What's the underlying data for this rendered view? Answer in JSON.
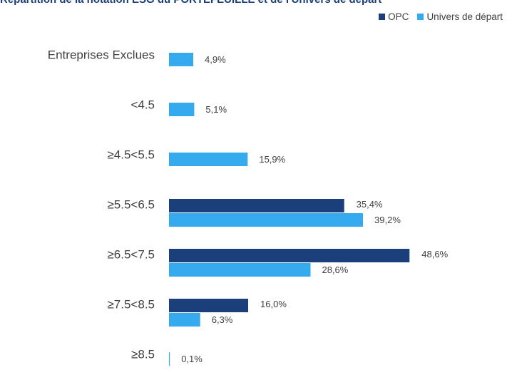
{
  "chart_data": {
    "type": "bar",
    "orientation": "horizontal",
    "title": "Répartition de la notation ESG du PORTEFEUILLE et de l'Univers de départ",
    "categories": [
      "Entreprises Exclues",
      "<4.5",
      "≥4.5<5.5",
      "≥5.5<6.5",
      "≥6.5<7.5",
      "≥7.5<8.5",
      "≥8.5"
    ],
    "series": [
      {
        "name": "OPC",
        "color": "#1b3f7a",
        "values": [
          null,
          null,
          null,
          35.4,
          48.6,
          16.0,
          null
        ],
        "labels": [
          "",
          "",
          "",
          "35,4%",
          "48,6%",
          "16,0%",
          ""
        ]
      },
      {
        "name": "Univers de départ",
        "color": "#36aaee",
        "values": [
          4.9,
          5.1,
          15.9,
          39.2,
          28.6,
          6.3,
          0.1
        ],
        "labels": [
          "4,9%",
          "5,1%",
          "15,9%",
          "39,2%",
          "28,6%",
          "6,3%",
          "0,1%"
        ]
      }
    ],
    "xlim": [
      0,
      50
    ],
    "grid": false,
    "legend_position": "top-right"
  }
}
